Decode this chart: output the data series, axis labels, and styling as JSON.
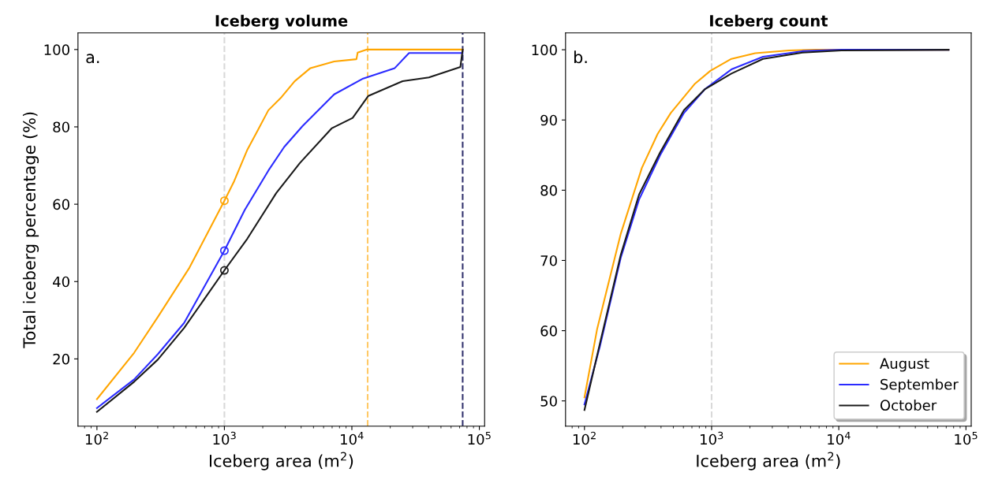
{
  "chart_data": [
    {
      "type": "line",
      "title": "Iceberg volume",
      "xlabel": "Iceberg area (m$^{2}$)",
      "ylabel": "Total iceberg percentage (%)",
      "annotations": [
        "a."
      ],
      "log": "x",
      "xlim": [
        71,
        110000
      ],
      "xticks": [
        {
          "value": 100,
          "label": "10$^{2}$"
        },
        {
          "value": 1000,
          "label": "10$^{3}$"
        },
        {
          "value": 10000,
          "label": "10$^{4}$"
        },
        {
          "value": 100000,
          "label": "10$^{5}$"
        }
      ],
      "ylim": [
        2.6,
        104.3
      ],
      "yticks": [
        20,
        40,
        60,
        80,
        100
      ],
      "grid": false,
      "legend": false,
      "series": [
        {
          "color": "#ffa500",
          "x": [
            100,
            196,
            300,
            532,
            1000,
            1194,
            1514,
            1832,
            2213,
            2806,
            3556,
            4730,
            7260,
            10860,
            11100,
            13150,
            74000
          ],
          "values": [
            9.6,
            21.6,
            30.8,
            43.6,
            60.9,
            66.0,
            74.1,
            79.2,
            84.3,
            87.7,
            91.8,
            95.2,
            96.9,
            97.5,
            99.2,
            100,
            100
          ]
        },
        {
          "color": "#2b2bff",
          "x": [
            100,
            196,
            300,
            483,
            1000,
            1443,
            2213,
            2944,
            4100,
            5200,
            7260,
            12250,
            21700,
            28100,
            74000
          ],
          "values": [
            7.3,
            14.7,
            21.2,
            29.3,
            48.0,
            58.5,
            68.7,
            74.8,
            80.2,
            83.6,
            88.4,
            92.5,
            95.2,
            99.1,
            99.1
          ]
        },
        {
          "color": "#1a1a1a",
          "x": [
            100,
            196,
            300,
            483,
            1000,
            1514,
            2553,
            3920,
            6930,
            10140,
            13460,
            25000,
            40200,
            71000,
            74000
          ],
          "values": [
            6.3,
            14.1,
            19.8,
            28.0,
            42.9,
            51.1,
            62.9,
            70.7,
            79.6,
            82.3,
            88.0,
            91.8,
            92.8,
            95.5,
            100
          ]
        },
        {
          "type": "scatter",
          "marker": "circle",
          "color": "#ffa500",
          "x": [
            1000
          ],
          "values": [
            60.9
          ]
        },
        {
          "type": "scatter",
          "marker": "circle",
          "color": "#2b2bff",
          "x": [
            1000
          ],
          "values": [
            48.0
          ]
        },
        {
          "type": "scatter",
          "marker": "circle",
          "color": "#1a1a1a",
          "x": [
            1000
          ],
          "values": [
            42.9
          ]
        }
      ],
      "ref_lines": [
        {
          "axis": "x",
          "value": 1000,
          "color": "#d9d9d9",
          "line_style": "dashed"
        },
        {
          "axis": "x",
          "value": 13300,
          "color": "#ffc966",
          "line_style": "dashed"
        },
        {
          "axis": "x",
          "value": 74000,
          "color": "#33336e",
          "line_style": "dashed"
        }
      ]
    },
    {
      "type": "line",
      "title": "Iceberg count",
      "xlabel": "Iceberg area (m$^{2}$)",
      "annotations": [
        "b."
      ],
      "log": "x",
      "xlim": [
        71,
        110000
      ],
      "xticks": [
        {
          "value": 100,
          "label": "10$^{2}$"
        },
        {
          "value": 1000,
          "label": "10$^{3}$"
        },
        {
          "value": 10000,
          "label": "10$^{4}$"
        },
        {
          "value": 100000,
          "label": "10$^{5}$"
        }
      ],
      "ylim": [
        46.4,
        102.4
      ],
      "yticks": [
        50,
        60,
        70,
        80,
        90,
        100
      ],
      "grid": false,
      "legend": "bottom right",
      "series": [
        {
          "name": "August",
          "color": "#ffa500",
          "x": [
            100,
            126,
            193,
            283,
            376,
            477,
            733,
            977,
            1430,
            2200,
            4070,
            6600,
            73000
          ],
          "values": [
            50.5,
            60.3,
            73.8,
            83.2,
            88.0,
            91.0,
            95.1,
            97.0,
            98.7,
            99.5,
            99.9,
            100,
            100
          ]
        },
        {
          "name": "September",
          "color": "#2b2bff",
          "x": [
            100,
            132,
            193,
            269,
            394,
            606,
            887,
            1430,
            2535,
            5170,
            10500,
            73000
          ],
          "values": [
            49.5,
            57.7,
            70.4,
            78.7,
            85.0,
            91.0,
            94.4,
            97.2,
            99.0,
            99.8,
            100,
            100
          ]
        },
        {
          "name": "October",
          "color": "#1a1a1a",
          "x": [
            100,
            132,
            193,
            269,
            394,
            606,
            887,
            1430,
            2535,
            5170,
            10500,
            73000
          ],
          "values": [
            48.7,
            58.1,
            70.8,
            79.4,
            85.4,
            91.4,
            94.4,
            96.6,
            98.7,
            99.6,
            99.9,
            100
          ]
        }
      ],
      "ref_lines": [
        {
          "axis": "x",
          "value": 1000,
          "color": "#d9d9d9",
          "line_style": "dashed"
        }
      ]
    }
  ]
}
